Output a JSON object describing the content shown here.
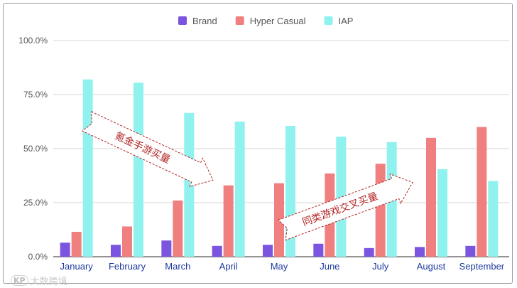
{
  "chart_data": {
    "type": "bar",
    "categories": [
      "January",
      "February",
      "March",
      "April",
      "May",
      "June",
      "July",
      "August",
      "September"
    ],
    "series": [
      {
        "name": "Brand",
        "color": "#7b55e0",
        "values": [
          6.5,
          5.5,
          7.5,
          5.0,
          5.5,
          6.0,
          4.0,
          4.5,
          5.0
        ]
      },
      {
        "name": "Hyper Casual",
        "color": "#f08080",
        "values": [
          11.5,
          14.0,
          26.0,
          33.0,
          34.0,
          38.5,
          43.0,
          55.0,
          60.0
        ]
      },
      {
        "name": "IAP",
        "color": "#8ff2ee",
        "values": [
          82.0,
          80.5,
          66.5,
          62.5,
          60.5,
          55.5,
          53.0,
          40.5,
          35.0
        ]
      }
    ],
    "yticks": [
      "0.0%",
      "25.0%",
      "50.0%",
      "75.0%",
      "100.0%"
    ],
    "ylim": [
      0,
      100
    ],
    "legend_position": "top-center",
    "grid": true,
    "annotations": [
      {
        "text": "氪金手游买量",
        "direction": "down-right"
      },
      {
        "text": "同类游戏交叉买量",
        "direction": "up-right"
      }
    ]
  },
  "watermark": {
    "logo": "KP",
    "text": "大数跨境"
  }
}
